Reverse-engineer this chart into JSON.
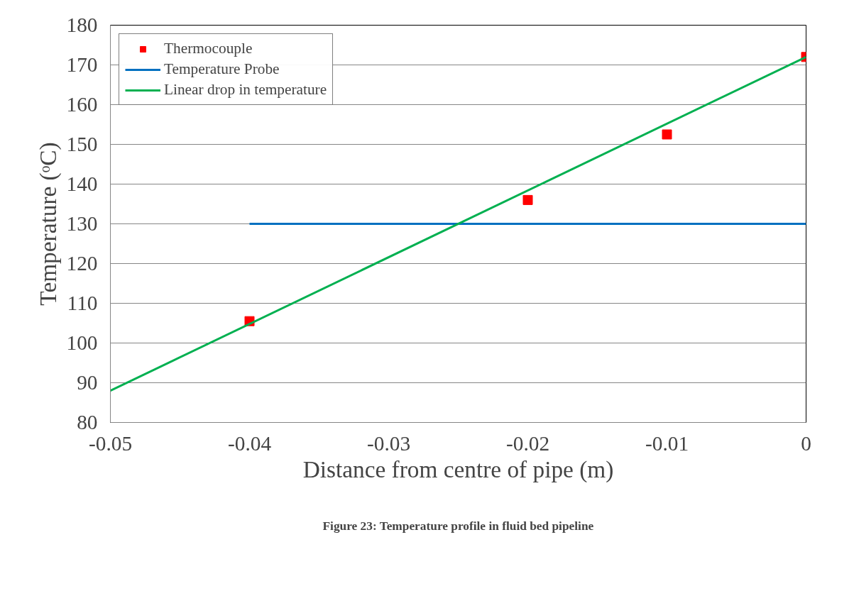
{
  "chart_data": {
    "type": "line",
    "xlabel": "Distance from centre of pipe (m)",
    "ylabel": "Temperature (ᵒC)",
    "xlim": [
      -0.05,
      0
    ],
    "ylim": [
      80,
      180
    ],
    "xticks": [
      -0.05,
      -0.04,
      -0.03,
      -0.02,
      -0.01,
      0
    ],
    "yticks": [
      80,
      90,
      100,
      110,
      120,
      130,
      140,
      150,
      160,
      170,
      180
    ],
    "grid": "y",
    "legend": "top left",
    "series": [
      {
        "name": "Thermocouple",
        "type": "scatter",
        "marker": "square",
        "color": "#ff0000",
        "x": [
          -0.04,
          -0.02,
          -0.01,
          0
        ],
        "values": [
          105.5,
          136,
          152.5,
          172
        ]
      },
      {
        "name": "Temperature Probe",
        "color": "#0070c0",
        "x": [
          -0.04,
          0
        ],
        "values": [
          130,
          130
        ]
      },
      {
        "name": "Linear drop in temperature",
        "color": "#00b050",
        "x": [
          -0.05,
          0
        ],
        "values": [
          88,
          172
        ]
      }
    ],
    "annotations": [
      "Figure 23: Temperature profile in fluid bed pipeline"
    ]
  }
}
